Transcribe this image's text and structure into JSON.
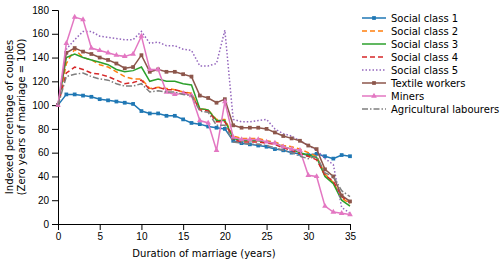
{
  "chart_data": {
    "type": "line",
    "xlabel": "Duration of marriage (years)",
    "ylabel": "Indexed percentage of couples\n(Zero years of marriage = 100)",
    "x": [
      0,
      1,
      2,
      3,
      4,
      5,
      6,
      7,
      8,
      9,
      10,
      11,
      12,
      13,
      14,
      15,
      16,
      17,
      18,
      19,
      20,
      21,
      22,
      23,
      24,
      25,
      26,
      27,
      28,
      29,
      30,
      31,
      32,
      33,
      34,
      35
    ],
    "series": [
      {
        "name": "Social class 1",
        "line_style": "solid",
        "marker": "square",
        "values": [
          100,
          109,
          109,
          108,
          107,
          105,
          104,
          103,
          102,
          101,
          95,
          93,
          93,
          91,
          91,
          88,
          85,
          84,
          82,
          81,
          80,
          70,
          68,
          67,
          66,
          65,
          63,
          62,
          60,
          59,
          58,
          59,
          57,
          55,
          58,
          57
        ]
      },
      {
        "name": "Social class 2",
        "line_style": "dashed",
        "values": [
          100,
          135,
          147,
          140,
          138,
          134,
          132,
          128,
          124,
          122,
          122,
          114,
          115,
          114,
          113,
          111,
          110,
          97,
          96,
          88,
          88,
          74,
          72,
          72,
          72,
          70,
          69,
          66,
          65,
          63,
          60,
          57,
          42,
          35,
          22,
          17
        ]
      },
      {
        "name": "Social class 3",
        "line_style": "solid",
        "values": [
          100,
          140,
          143,
          140,
          138,
          136,
          134,
          130,
          128,
          129,
          132,
          120,
          122,
          120,
          120,
          118,
          117,
          97,
          96,
          87,
          87,
          72,
          70,
          70,
          70,
          69,
          68,
          65,
          63,
          60,
          58,
          56,
          40,
          34,
          20,
          15
        ]
      },
      {
        "name": "Social class 4",
        "line_style": "dashed",
        "values": [
          100,
          127,
          132,
          130,
          127,
          126,
          124,
          121,
          118,
          119,
          121,
          113,
          115,
          113,
          113,
          111,
          109,
          96,
          95,
          86,
          86,
          71,
          69,
          69,
          69,
          68,
          67,
          64,
          62,
          59,
          57,
          54,
          41,
          36,
          23,
          18
        ]
      },
      {
        "name": "Social class 5",
        "line_style": "dotted",
        "values": [
          100,
          147,
          155,
          162,
          162,
          158,
          157,
          156,
          155,
          155,
          162,
          152,
          153,
          150,
          150,
          147,
          146,
          133,
          133,
          135,
          163,
          88,
          86,
          86,
          87,
          88,
          80,
          76,
          74,
          70,
          66,
          62,
          55,
          50,
          14,
          9
        ]
      },
      {
        "name": "Textile workers",
        "line_style": "solid",
        "marker": "square",
        "values": [
          100,
          144,
          148,
          145,
          143,
          140,
          138,
          135,
          131,
          132,
          142,
          128,
          130,
          128,
          128,
          126,
          124,
          108,
          106,
          102,
          105,
          83,
          81,
          81,
          81,
          80,
          77,
          74,
          72,
          70,
          66,
          63,
          46,
          40,
          24,
          19
        ]
      },
      {
        "name": "Miners",
        "line_style": "solid",
        "marker": "triangle",
        "values": [
          100,
          152,
          174,
          172,
          148,
          146,
          144,
          142,
          141,
          143,
          158,
          130,
          130,
          111,
          109,
          110,
          108,
          87,
          85,
          62,
          103,
          73,
          71,
          71,
          71,
          69,
          68,
          65,
          63,
          62,
          41,
          40,
          15,
          10,
          9,
          8
        ]
      },
      {
        "name": "Agricultural labourers",
        "line_style": "dashdot",
        "values": [
          100,
          124,
          126,
          127,
          124,
          122,
          121,
          118,
          116,
          116,
          118,
          111,
          112,
          111,
          111,
          109,
          108,
          95,
          94,
          83,
          83,
          69,
          68,
          67,
          67,
          66,
          64,
          62,
          60,
          57,
          55,
          57,
          43,
          40,
          28,
          23
        ]
      }
    ],
    "xlim": [
      0,
      35
    ],
    "ylim": [
      0,
      180
    ],
    "xticks": [
      0,
      5,
      10,
      15,
      20,
      25,
      30,
      35
    ],
    "yticks": [
      0,
      20,
      40,
      60,
      80,
      100,
      120,
      140,
      160,
      180
    ],
    "legend": "upper right",
    "grid": false
  }
}
